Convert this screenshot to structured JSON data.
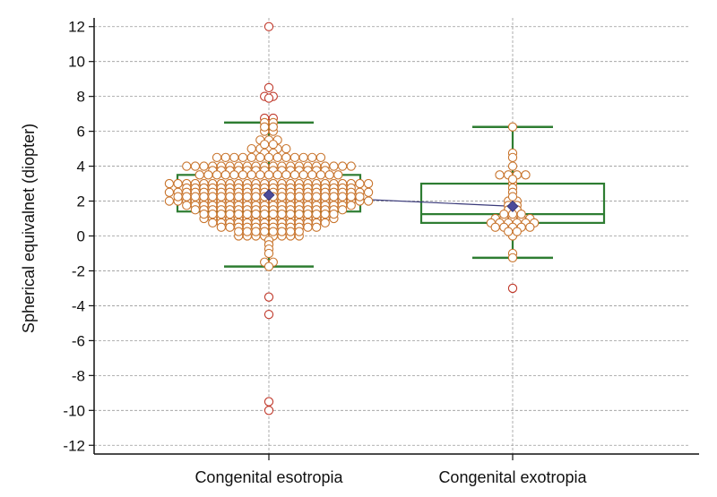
{
  "chart_data": {
    "type": "box-and-dot",
    "title": "",
    "xlabel": "",
    "ylabel": "Spherical equivalnet (diopter)",
    "ylim": [
      -12.5,
      12.5
    ],
    "yticks": [
      -12,
      -10,
      -8,
      -6,
      -4,
      -2,
      0,
      2,
      4,
      6,
      8,
      10,
      12
    ],
    "grid": true,
    "categories": [
      "Congenital esotropia",
      "Congenital exotropia"
    ],
    "colors": {
      "box": "#2e7d32",
      "points": "#c8742c",
      "outlier_points": "#c0392b",
      "mean_marker": "#4b4b9a",
      "mean_line": "#3a3a7a",
      "grid": "#9a9a9a"
    },
    "series": [
      {
        "name": "Congenital esotropia",
        "q1": 1.4,
        "median": 2.5,
        "q3": 3.5,
        "whisker_low": -1.75,
        "whisker_high": 6.5,
        "mean": 2.35,
        "points": [
          12,
          8.5,
          8,
          8,
          7.9,
          6.75,
          6.75,
          6.5,
          6.5,
          6.25,
          6.25,
          6,
          6,
          5.5,
          5.5,
          5.5,
          5.25,
          5.25,
          5,
          5,
          5,
          5,
          5,
          4.75,
          4.75,
          4.5,
          4.5,
          4.5,
          4.5,
          4.5,
          4.5,
          4.5,
          4.5,
          4.5,
          4.5,
          4.5,
          4.5,
          4.5,
          4,
          4,
          4,
          4,
          4,
          4,
          4,
          4,
          4,
          4,
          4,
          4,
          4,
          4,
          4,
          4,
          4,
          4,
          4,
          4,
          3.75,
          3.75,
          3.75,
          3.75,
          3.75,
          3.75,
          3.75,
          3.75,
          3.75,
          3.75,
          3.75,
          3.75,
          3.75,
          3.75,
          3.5,
          3.5,
          3.5,
          3.5,
          3.5,
          3.5,
          3.5,
          3.5,
          3.5,
          3.5,
          3.5,
          3.5,
          3.5,
          3.5,
          3.5,
          3.5,
          3.5,
          3,
          3,
          3,
          3,
          3,
          3,
          3,
          3,
          3,
          3,
          3,
          3,
          3,
          3,
          3,
          3,
          3,
          3,
          3,
          3,
          3,
          3,
          3,
          3,
          2.75,
          2.75,
          2.75,
          2.75,
          2.75,
          2.75,
          2.75,
          2.75,
          2.75,
          2.75,
          2.75,
          2.75,
          2.75,
          2.75,
          2.75,
          2.75,
          2.75,
          2.75,
          2.75,
          2.75,
          2.5,
          2.5,
          2.5,
          2.5,
          2.5,
          2.5,
          2.5,
          2.5,
          2.5,
          2.5,
          2.5,
          2.5,
          2.5,
          2.5,
          2.5,
          2.5,
          2.5,
          2.5,
          2.5,
          2.5,
          2.5,
          2.5,
          2.5,
          2.5,
          2.25,
          2.25,
          2.25,
          2.25,
          2.25,
          2.25,
          2.25,
          2.25,
          2.25,
          2.25,
          2.25,
          2.25,
          2.25,
          2.25,
          2.25,
          2.25,
          2.25,
          2.25,
          2.25,
          2.25,
          2.25,
          2.25,
          2,
          2,
          2,
          2,
          2,
          2,
          2,
          2,
          2,
          2,
          2,
          2,
          2,
          2,
          2,
          2,
          2,
          2,
          2,
          2,
          2,
          2,
          2,
          2,
          1.75,
          1.75,
          1.75,
          1.75,
          1.75,
          1.75,
          1.75,
          1.75,
          1.75,
          1.75,
          1.75,
          1.75,
          1.75,
          1.75,
          1.75,
          1.75,
          1.75,
          1.75,
          1.75,
          1.75,
          1.5,
          1.5,
          1.5,
          1.5,
          1.5,
          1.5,
          1.5,
          1.5,
          1.5,
          1.5,
          1.5,
          1.5,
          1.5,
          1.5,
          1.5,
          1.5,
          1.5,
          1.5,
          1.25,
          1.25,
          1.25,
          1.25,
          1.25,
          1.25,
          1.25,
          1.25,
          1.25,
          1.25,
          1.25,
          1.25,
          1.25,
          1.25,
          1.25,
          1.25,
          1,
          1,
          1,
          1,
          1,
          1,
          1,
          1,
          1,
          1,
          1,
          1,
          1,
          1,
          1,
          1,
          0.75,
          0.75,
          0.75,
          0.75,
          0.75,
          0.75,
          0.75,
          0.75,
          0.75,
          0.75,
          0.75,
          0.75,
          0.75,
          0.75,
          0.5,
          0.5,
          0.5,
          0.5,
          0.5,
          0.5,
          0.5,
          0.5,
          0.5,
          0.5,
          0.5,
          0.5,
          0.25,
          0.25,
          0.25,
          0.25,
          0.25,
          0.25,
          0.25,
          0.25,
          0,
          0,
          0,
          0,
          0,
          0,
          0,
          0,
          -0.25,
          -0.5,
          -0.75,
          -1,
          -1.5,
          -1.5,
          -1.75,
          -3.5,
          -4.5,
          -9.5,
          -10
        ]
      },
      {
        "name": "Congenital exotropia",
        "q1": 0.75,
        "median": 1.25,
        "q3": 3,
        "whisker_low": -1.25,
        "whisker_high": 6.25,
        "mean": 1.7,
        "points": [
          6.25,
          4.75,
          4.5,
          4,
          3.5,
          3.5,
          3.5,
          3.5,
          3.25,
          3,
          2.75,
          2.5,
          2.25,
          2,
          2,
          1.75,
          1.75,
          1.5,
          1.5,
          1.25,
          1.25,
          1.25,
          1,
          1,
          1,
          1,
          1,
          0.75,
          0.75,
          0.75,
          0.75,
          0.75,
          0.75,
          0.5,
          0.5,
          0.5,
          0.5,
          0.5,
          0.25,
          0.25,
          0,
          -1,
          -1.25,
          -3
        ]
      }
    ]
  }
}
